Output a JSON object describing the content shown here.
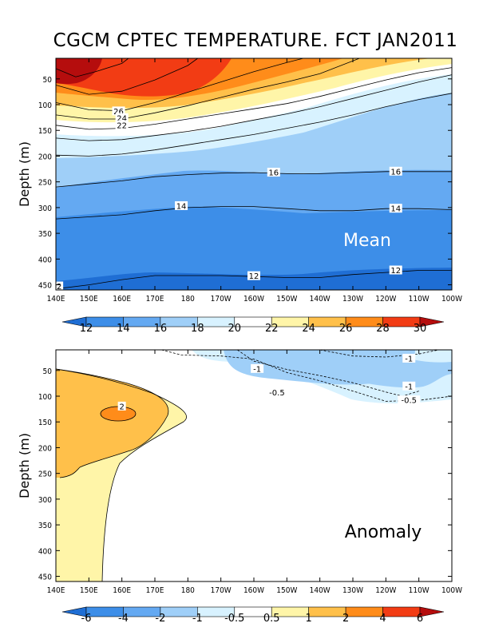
{
  "title": "CGCM CPTEC TEMPERATURE. FCT JAN2011",
  "chart_data": [
    {
      "type": "contour",
      "name": "mean",
      "panel_label": "Mean",
      "ylabel": "Depth (m)",
      "xlim": [
        140,
        260
      ],
      "ylim": [
        460,
        10
      ],
      "x_ticks": [
        "140E",
        "150E",
        "160E",
        "170E",
        "180",
        "170W",
        "160W",
        "150W",
        "140W",
        "130W",
        "120W",
        "110W",
        "100W"
      ],
      "y_ticks": [
        50,
        100,
        150,
        200,
        250,
        300,
        350,
        400,
        450
      ],
      "contour_levels": [
        12,
        14,
        16,
        18,
        20,
        22,
        24,
        26,
        28,
        30
      ],
      "contours": [
        {
          "level": 30,
          "x": [
            140,
            146,
            152,
            160,
            162
          ],
          "y": [
            30,
            46,
            36,
            20,
            10
          ]
        },
        {
          "level": 28,
          "x": [
            140,
            150,
            160,
            170,
            180,
            183
          ],
          "y": [
            62,
            80,
            74,
            52,
            24,
            10
          ]
        },
        {
          "level": 26,
          "x": [
            140,
            150,
            160,
            170,
            180,
            190,
            200,
            210,
            215
          ],
          "y": [
            96,
            110,
            112,
            96,
            76,
            56,
            36,
            18,
            10
          ]
        },
        {
          "level": 24,
          "x": [
            140,
            150,
            160,
            170,
            180,
            190,
            200,
            210,
            220,
            232
          ],
          "y": [
            120,
            128,
            128,
            116,
            102,
            86,
            70,
            56,
            40,
            10
          ]
        },
        {
          "level": 22,
          "x": [
            140,
            150,
            160,
            170,
            180,
            190,
            200,
            210,
            220,
            230,
            240,
            250,
            260
          ],
          "y": [
            140,
            148,
            146,
            138,
            128,
            118,
            108,
            98,
            84,
            68,
            52,
            38,
            28
          ]
        },
        {
          "level": 20,
          "x": [
            140,
            150,
            160,
            170,
            180,
            190,
            200,
            210,
            220,
            230,
            240,
            250,
            260
          ],
          "y": [
            165,
            170,
            168,
            160,
            152,
            142,
            130,
            118,
            104,
            88,
            72,
            56,
            42
          ]
        },
        {
          "level": 18,
          "x": [
            140,
            150,
            160,
            170,
            180,
            190,
            200,
            210,
            220,
            230,
            240,
            250,
            260
          ],
          "y": [
            198,
            200,
            196,
            188,
            178,
            168,
            158,
            146,
            134,
            120,
            104,
            90,
            78
          ]
        },
        {
          "level": 16,
          "x": [
            140,
            150,
            160,
            170,
            180,
            190,
            200,
            210,
            220,
            230,
            240,
            250,
            260
          ],
          "y": [
            260,
            254,
            248,
            240,
            236,
            233,
            232,
            234,
            234,
            232,
            230,
            230,
            230
          ]
        },
        {
          "level": 14,
          "x": [
            140,
            150,
            160,
            170,
            180,
            190,
            200,
            210,
            220,
            230,
            240,
            250,
            260
          ],
          "y": [
            322,
            318,
            314,
            306,
            300,
            298,
            298,
            302,
            306,
            306,
            302,
            302,
            304
          ]
        },
        {
          "level": 12,
          "x": [
            140,
            150,
            160,
            170,
            180,
            190,
            200,
            210,
            220,
            230,
            240,
            250,
            260
          ],
          "y": [
            458,
            450,
            440,
            432,
            432,
            432,
            434,
            436,
            436,
            430,
            426,
            422,
            422
          ]
        }
      ],
      "contour_labels": [
        {
          "text": "26",
          "x": 159,
          "y": 113
        },
        {
          "text": "24",
          "x": 160,
          "y": 126
        },
        {
          "text": "22",
          "x": 160,
          "y": 140
        },
        {
          "text": "16",
          "x": 206,
          "y": 232
        },
        {
          "text": "16",
          "x": 243,
          "y": 230
        },
        {
          "text": "14",
          "x": 178,
          "y": 297
        },
        {
          "text": "14",
          "x": 243,
          "y": 302
        },
        {
          "text": "12",
          "x": 200,
          "y": 433
        },
        {
          "text": "12",
          "x": 243,
          "y": 422
        },
        {
          "text": "2",
          "x": 141,
          "y": 453
        }
      ],
      "colorbar": {
        "labels": [
          "12",
          "14",
          "16",
          "18",
          "20",
          "22",
          "24",
          "26",
          "28",
          "30"
        ],
        "colors": [
          "#1f6ed4",
          "#3d8ee8",
          "#64a9f2",
          "#9fcff8",
          "#d8f2ff",
          "#ffffff",
          "#fff5a8",
          "#ffc04a",
          "#ff8c1a",
          "#f23c14",
          "#b50d0d"
        ]
      }
    },
    {
      "type": "contour",
      "name": "anomaly",
      "panel_label": "Anomaly",
      "ylabel": "Depth (m)",
      "xlim": [
        140,
        260
      ],
      "ylim": [
        460,
        10
      ],
      "x_ticks": [
        "140E",
        "150E",
        "160E",
        "170E",
        "180",
        "170W",
        "160W",
        "150W",
        "140W",
        "130W",
        "120W",
        "110W",
        "100W"
      ],
      "y_ticks": [
        50,
        100,
        150,
        200,
        250,
        300,
        350,
        400,
        450
      ],
      "contour_levels": [
        -6,
        -4,
        -2,
        -1,
        -0.5,
        0.5,
        1,
        2,
        4,
        6
      ],
      "contours": [
        {
          "level": "-0.5",
          "x": [
            172,
            178,
            190,
            200,
            210,
            220,
            230,
            240,
            250,
            260
          ],
          "y": [
            10,
            20,
            22,
            28,
            54,
            70,
            90,
            110,
            108,
            100
          ]
        },
        {
          "level": "-1",
          "x": [
            195,
            200,
            210,
            220,
            230,
            240,
            245,
            250
          ],
          "y": [
            10,
            32,
            48,
            60,
            74,
            92,
            100,
            90
          ]
        },
        {
          "level": "-1",
          "x": [
            220,
            230,
            240,
            250,
            256
          ],
          "y": [
            10,
            22,
            24,
            18,
            10
          ]
        }
      ],
      "contour_labels": [
        {
          "text": "-1",
          "x": 247,
          "y": 27
        },
        {
          "text": "-1",
          "x": 201,
          "y": 47
        },
        {
          "text": "-1",
          "x": 247,
          "y": 81
        },
        {
          "text": "-0.5",
          "x": 207,
          "y": 93
        },
        {
          "text": "-0.5",
          "x": 247,
          "y": 108
        },
        {
          "text": "2",
          "x": 160,
          "y": 120
        }
      ],
      "colorbar": {
        "labels": [
          "-6",
          "-4",
          "-2",
          "-1",
          "-0.5",
          "0.5",
          "1",
          "2",
          "4",
          "6"
        ],
        "colors": [
          "#1f6ed4",
          "#3d8ee8",
          "#64a9f2",
          "#9fcff8",
          "#d8f2ff",
          "#ffffff",
          "#fff5a8",
          "#ffc04a",
          "#ff8c1a",
          "#f23c14",
          "#b50d0d"
        ]
      }
    }
  ]
}
